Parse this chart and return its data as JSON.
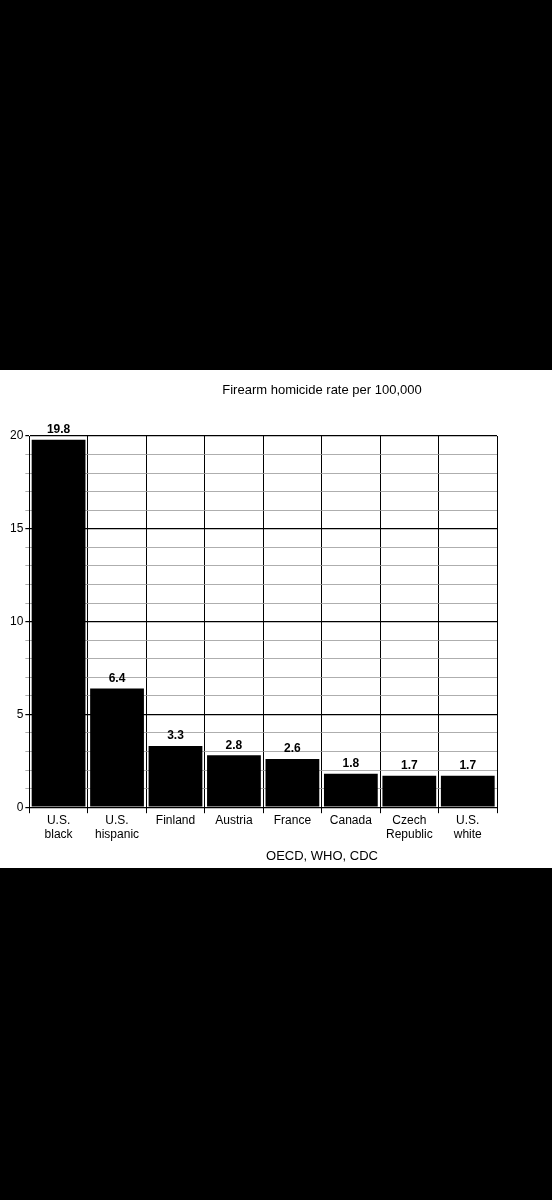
{
  "chart_data": {
    "type": "bar",
    "title": "Firearm homicide rate per 100,000",
    "categories": [
      "U.S. black",
      "U.S. hispanic",
      "Finland",
      "Austria",
      "France",
      "Canada",
      "Czech Republic",
      "U.S. white"
    ],
    "values": [
      19.8,
      6.4,
      3.3,
      2.8,
      2.6,
      1.8,
      1.7,
      1.7
    ],
    "color": "#000000",
    "ylim": [
      0,
      20
    ],
    "yticks": [
      0,
      {
        "value": 1,
        "label": null
      },
      {
        "value": 2,
        "label": null
      },
      {
        "value": 3,
        "label": null
      },
      {
        "value": 4,
        "label": null
      },
      5,
      {
        "value": 6,
        "label": null
      },
      {
        "value": 7,
        "label": null
      },
      {
        "value": 8,
        "label": null
      },
      {
        "value": 9,
        "label": null
      },
      10,
      {
        "value": 11,
        "label": null
      },
      {
        "value": 12,
        "label": null
      },
      {
        "value": 13,
        "label": null
      },
      {
        "value": 14,
        "label": null
      },
      15,
      {
        "value": 16,
        "label": null
      },
      {
        "value": 17,
        "label": null
      },
      {
        "value": 18,
        "label": null
      },
      {
        "value": 19,
        "label": null
      },
      20
    ],
    "grid": true,
    "data_labels": true,
    "annotations": [
      "OECD, WHO, CDC"
    ]
  }
}
